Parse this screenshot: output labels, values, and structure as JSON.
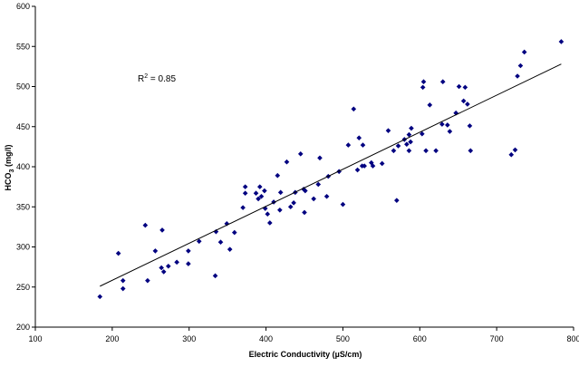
{
  "chart_data": {
    "type": "scatter",
    "xlabel": "Electric Conductivity (µS/cm)",
    "ylabel_main": "HCO",
    "ylabel_sub": "3",
    "ylabel_rest": " (mg/l)",
    "annotation_main": "R",
    "annotation_sup": "2",
    "annotation_rest": " = 0.85",
    "xlim": [
      100,
      800
    ],
    "ylim": [
      200,
      600
    ],
    "xticks": [
      100,
      200,
      300,
      400,
      500,
      600,
      700,
      800
    ],
    "yticks": [
      200,
      250,
      300,
      350,
      400,
      450,
      500,
      550,
      600
    ],
    "marker_color": "#000080",
    "trendline": {
      "x1": 184,
      "y1": 251,
      "x2": 784,
      "y2": 528
    },
    "points": [
      {
        "x": 184,
        "y": 238
      },
      {
        "x": 208,
        "y": 292
      },
      {
        "x": 214,
        "y": 248
      },
      {
        "x": 214,
        "y": 258
      },
      {
        "x": 243,
        "y": 327
      },
      {
        "x": 246,
        "y": 258
      },
      {
        "x": 256,
        "y": 295
      },
      {
        "x": 264,
        "y": 274
      },
      {
        "x": 265,
        "y": 321
      },
      {
        "x": 267,
        "y": 269
      },
      {
        "x": 273,
        "y": 276
      },
      {
        "x": 284,
        "y": 281
      },
      {
        "x": 299,
        "y": 295
      },
      {
        "x": 299,
        "y": 279
      },
      {
        "x": 313,
        "y": 307
      },
      {
        "x": 334,
        "y": 264
      },
      {
        "x": 335,
        "y": 319
      },
      {
        "x": 341,
        "y": 306
      },
      {
        "x": 349,
        "y": 329
      },
      {
        "x": 353,
        "y": 297
      },
      {
        "x": 359,
        "y": 318
      },
      {
        "x": 370,
        "y": 349
      },
      {
        "x": 373,
        "y": 375
      },
      {
        "x": 373,
        "y": 367
      },
      {
        "x": 387,
        "y": 367
      },
      {
        "x": 390,
        "y": 360
      },
      {
        "x": 392,
        "y": 375
      },
      {
        "x": 394,
        "y": 363
      },
      {
        "x": 398,
        "y": 370
      },
      {
        "x": 399,
        "y": 348
      },
      {
        "x": 402,
        "y": 341
      },
      {
        "x": 405,
        "y": 330
      },
      {
        "x": 410,
        "y": 356
      },
      {
        "x": 415,
        "y": 389
      },
      {
        "x": 418,
        "y": 346
      },
      {
        "x": 419,
        "y": 368
      },
      {
        "x": 427,
        "y": 406
      },
      {
        "x": 432,
        "y": 350
      },
      {
        "x": 436,
        "y": 355
      },
      {
        "x": 438,
        "y": 368
      },
      {
        "x": 445,
        "y": 416
      },
      {
        "x": 449,
        "y": 372
      },
      {
        "x": 450,
        "y": 343
      },
      {
        "x": 451,
        "y": 370
      },
      {
        "x": 462,
        "y": 360
      },
      {
        "x": 468,
        "y": 378
      },
      {
        "x": 470,
        "y": 411
      },
      {
        "x": 479,
        "y": 363
      },
      {
        "x": 481,
        "y": 388
      },
      {
        "x": 495,
        "y": 394
      },
      {
        "x": 500,
        "y": 353
      },
      {
        "x": 507,
        "y": 427
      },
      {
        "x": 514,
        "y": 472
      },
      {
        "x": 519,
        "y": 396
      },
      {
        "x": 521,
        "y": 436
      },
      {
        "x": 525,
        "y": 401
      },
      {
        "x": 526,
        "y": 427
      },
      {
        "x": 528,
        "y": 401
      },
      {
        "x": 537,
        "y": 405
      },
      {
        "x": 539,
        "y": 401
      },
      {
        "x": 551,
        "y": 404
      },
      {
        "x": 559,
        "y": 445
      },
      {
        "x": 566,
        "y": 420
      },
      {
        "x": 570,
        "y": 358
      },
      {
        "x": 572,
        "y": 426
      },
      {
        "x": 580,
        "y": 434
      },
      {
        "x": 583,
        "y": 428
      },
      {
        "x": 586,
        "y": 440
      },
      {
        "x": 586,
        "y": 420
      },
      {
        "x": 588,
        "y": 431
      },
      {
        "x": 589,
        "y": 448
      },
      {
        "x": 603,
        "y": 441
      },
      {
        "x": 604,
        "y": 499
      },
      {
        "x": 605,
        "y": 506
      },
      {
        "x": 608,
        "y": 420
      },
      {
        "x": 613,
        "y": 477
      },
      {
        "x": 621,
        "y": 420
      },
      {
        "x": 629,
        "y": 453
      },
      {
        "x": 630,
        "y": 506
      },
      {
        "x": 636,
        "y": 452
      },
      {
        "x": 639,
        "y": 444
      },
      {
        "x": 647,
        "y": 467
      },
      {
        "x": 651,
        "y": 500
      },
      {
        "x": 657,
        "y": 482
      },
      {
        "x": 659,
        "y": 499
      },
      {
        "x": 662,
        "y": 478
      },
      {
        "x": 665,
        "y": 451
      },
      {
        "x": 666,
        "y": 420
      },
      {
        "x": 719,
        "y": 415
      },
      {
        "x": 724,
        "y": 421
      },
      {
        "x": 727,
        "y": 513
      },
      {
        "x": 731,
        "y": 526
      },
      {
        "x": 736,
        "y": 543
      },
      {
        "x": 784,
        "y": 556
      }
    ]
  }
}
